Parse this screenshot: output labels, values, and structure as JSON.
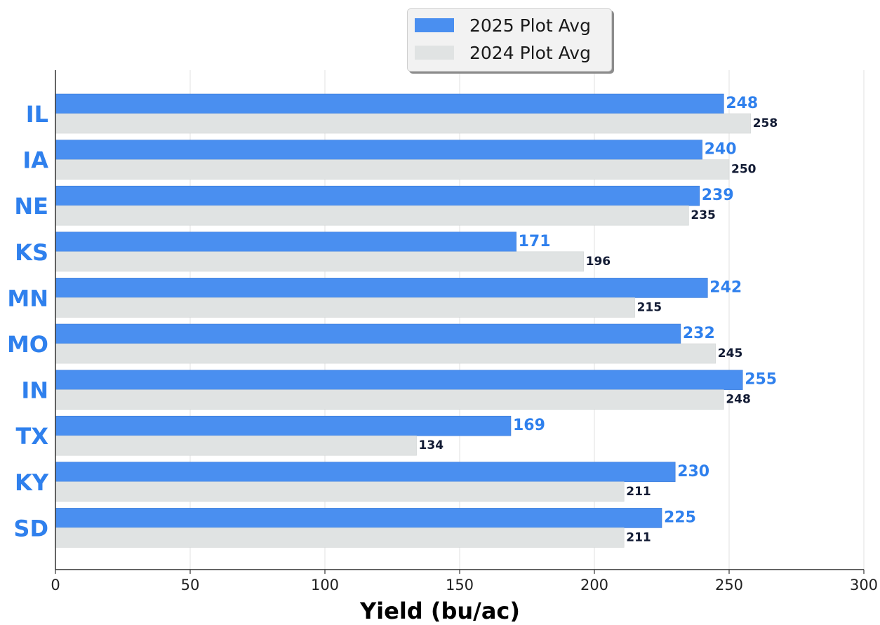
{
  "chart_data": {
    "type": "bar",
    "orientation": "horizontal",
    "categories": [
      "IL",
      "IA",
      "NE",
      "KS",
      "MN",
      "MO",
      "IN",
      "TX",
      "KY",
      "SD"
    ],
    "series": [
      {
        "name": "2025 Plot Avg",
        "color": "#4a8ff0",
        "values": [
          248,
          240,
          239,
          171,
          242,
          232,
          255,
          169,
          230,
          225
        ]
      },
      {
        "name": "2024 Plot Avg",
        "color": "#e0e3e3",
        "values": [
          258,
          250,
          235,
          196,
          215,
          245,
          248,
          134,
          211,
          211
        ]
      }
    ],
    "title": "",
    "xlabel": "Yield (bu/ac)",
    "ylabel": "",
    "xlim": [
      0,
      300
    ],
    "xticks": [
      0,
      50,
      100,
      150,
      200,
      250,
      300
    ],
    "grid": "vertical",
    "legend_position": "top",
    "category_label_color": "#2f80ed",
    "value_label_colors": [
      "#2f80ed",
      "#111a33"
    ]
  }
}
